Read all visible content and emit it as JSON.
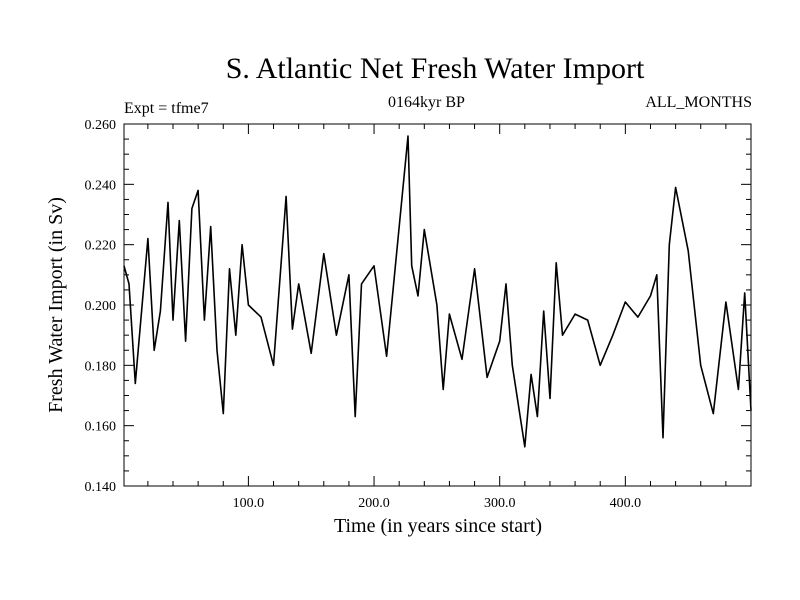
{
  "chart_data": {
    "type": "line",
    "title": "S. Atlantic Net Fresh Water Import",
    "subtitle": "0164kyr BP",
    "left_label": "Expt = tfme7",
    "right_label": "ALL_MONTHS",
    "xlabel": "Time (in years since start)",
    "ylabel": "Fresh Water Import (in Sv)",
    "xlim": [
      1,
      500
    ],
    "ylim": [
      0.14,
      0.26
    ],
    "x_ticks": [
      100,
      200,
      300,
      400
    ],
    "x_tick_labels": [
      "100.0",
      "200.0",
      "300.0",
      "400.0"
    ],
    "y_ticks": [
      0.14,
      0.16,
      0.18,
      0.2,
      0.22,
      0.24,
      0.26
    ],
    "y_tick_labels": [
      "0.140",
      "0.160",
      "0.180",
      "0.200",
      "0.220",
      "0.240",
      "0.260"
    ],
    "grid": false,
    "series": [
      {
        "x": [
          1,
          5,
          10,
          20,
          25,
          30,
          36,
          40,
          45,
          50,
          55,
          60,
          65,
          70,
          75,
          80,
          85,
          90,
          95,
          100,
          110,
          120,
          130,
          135,
          140,
          150,
          160,
          170,
          180,
          185,
          190,
          200,
          210,
          220,
          227,
          230,
          235,
          240,
          250,
          255,
          260,
          270,
          280,
          290,
          300,
          305,
          310,
          320,
          325,
          330,
          335,
          340,
          345,
          350,
          360,
          370,
          380,
          390,
          400,
          410,
          420,
          425,
          430,
          435,
          440,
          450,
          460,
          470,
          480,
          490,
          495,
          500
        ],
        "y": [
          0.213,
          0.207,
          0.174,
          0.222,
          0.185,
          0.198,
          0.234,
          0.195,
          0.228,
          0.188,
          0.232,
          0.238,
          0.195,
          0.226,
          0.185,
          0.164,
          0.212,
          0.19,
          0.22,
          0.2,
          0.196,
          0.18,
          0.236,
          0.192,
          0.207,
          0.184,
          0.217,
          0.19,
          0.21,
          0.163,
          0.207,
          0.213,
          0.183,
          0.226,
          0.256,
          0.213,
          0.203,
          0.225,
          0.2,
          0.172,
          0.197,
          0.182,
          0.212,
          0.176,
          0.188,
          0.207,
          0.18,
          0.153,
          0.177,
          0.163,
          0.198,
          0.169,
          0.214,
          0.19,
          0.197,
          0.195,
          0.18,
          0.19,
          0.201,
          0.196,
          0.203,
          0.21,
          0.156,
          0.22,
          0.239,
          0.218,
          0.18,
          0.164,
          0.201,
          0.172,
          0.204,
          0.165
        ]
      }
    ]
  }
}
